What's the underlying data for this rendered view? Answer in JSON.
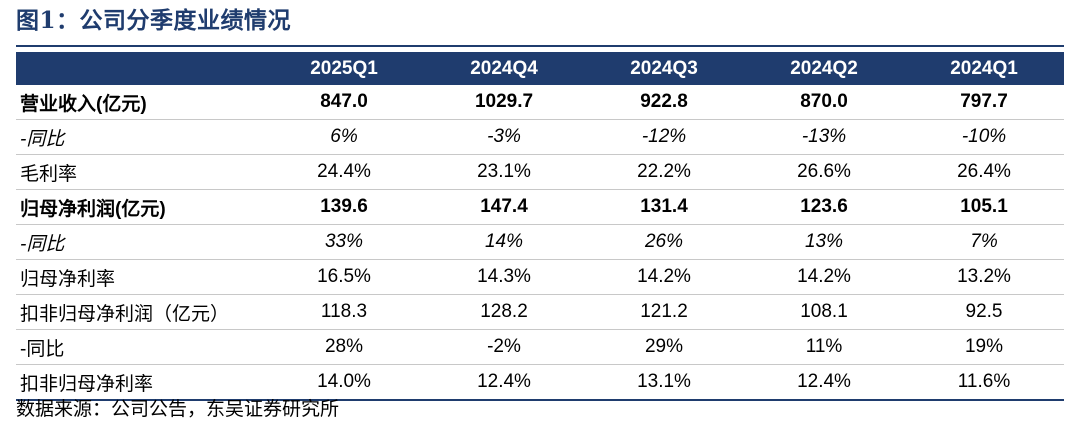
{
  "figure_title": "图1：公司分季度业绩情况",
  "table": {
    "header": {
      "label": "",
      "periods": [
        "2025Q1",
        "2024Q4",
        "2024Q3",
        "2024Q2",
        "2024Q1"
      ]
    },
    "rows": [
      {
        "label": "营业收入(亿元)",
        "style": "bold",
        "values": [
          "847.0",
          "1029.7",
          "922.8",
          "870.0",
          "797.7"
        ]
      },
      {
        "label": "-同比",
        "style": "italic",
        "values": [
          "6%",
          "-3%",
          "-12%",
          "-13%",
          "-10%"
        ]
      },
      {
        "label": "毛利率",
        "style": "normal",
        "values": [
          "24.4%",
          "23.1%",
          "22.2%",
          "26.6%",
          "26.4%"
        ]
      },
      {
        "label": "归母净利润(亿元)",
        "style": "bold",
        "values": [
          "139.6",
          "147.4",
          "131.4",
          "123.6",
          "105.1"
        ]
      },
      {
        "label": "-同比",
        "style": "italic",
        "values": [
          "33%",
          "14%",
          "26%",
          "13%",
          "7%"
        ]
      },
      {
        "label": "归母净利率",
        "style": "normal",
        "values": [
          "16.5%",
          "14.3%",
          "14.2%",
          "14.2%",
          "13.2%"
        ]
      },
      {
        "label": "扣非归母净利润（亿元）",
        "style": "normal",
        "values": [
          "118.3",
          "128.2",
          "121.2",
          "108.1",
          "92.5"
        ]
      },
      {
        "label": "-同比",
        "style": "normal",
        "values": [
          "28%",
          "-2%",
          "29%",
          "11%",
          "19%"
        ]
      },
      {
        "label": "扣非归母净利率",
        "style": "normal",
        "values": [
          "14.0%",
          "12.4%",
          "13.1%",
          "12.4%",
          "11.6%"
        ]
      }
    ]
  },
  "source_note": "数据来源：公司公告，东吴证券研究所",
  "colors": {
    "header_background": "#1f3c6e",
    "title_text": "#1f3c6e",
    "row_divider": "#c8c8c8"
  }
}
